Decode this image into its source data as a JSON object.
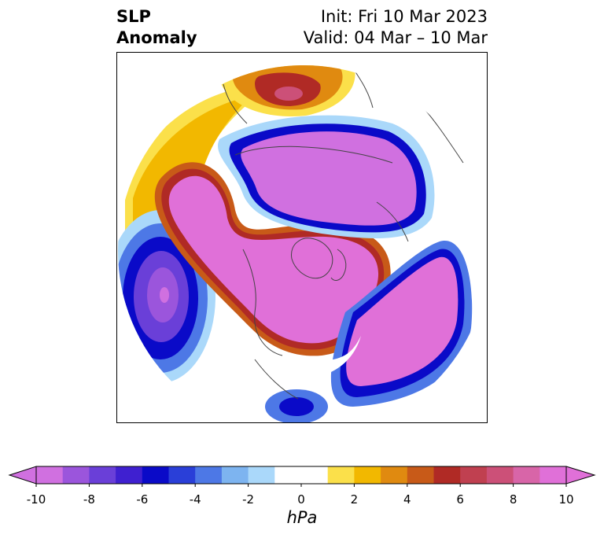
{
  "title": {
    "left_line1": "SLP",
    "left_line2": "Anomaly",
    "right_line1": "Init: Fri 10 Mar 2023",
    "right_line2": "Valid: 04 Mar – 10 Mar"
  },
  "map": {
    "projection": "polar stereographic (north pole centered, circular domain)",
    "coastline_color": "#444444",
    "features": [
      {
        "name": "north-america-negative-anomaly",
        "sign": "negative",
        "level": "-10 or lower"
      },
      {
        "name": "north-pacific-negative-anomaly",
        "sign": "negative",
        "level": "-10 or lower"
      },
      {
        "name": "north-atlantic-europe-positive-anomaly",
        "sign": "positive",
        "level": "10 or higher"
      },
      {
        "name": "arctic-positive-anomaly",
        "sign": "positive",
        "level": "10 or higher"
      },
      {
        "name": "eastern-siberia-positive-anomaly",
        "sign": "positive",
        "level": "10 or higher"
      },
      {
        "name": "southeast-us-negative-anomaly",
        "sign": "negative",
        "level": "-6"
      },
      {
        "name": "north-africa-negative-anomaly",
        "sign": "negative",
        "level": "-8"
      }
    ]
  },
  "colorbar": {
    "unit": "hPa",
    "extend": "both",
    "min_color": "#d070e0",
    "max_color": "#e070d8",
    "ticks": [
      "-10",
      "-8",
      "-6",
      "-4",
      "-2",
      "0",
      "2",
      "4",
      "6",
      "8",
      "10"
    ],
    "colors": [
      "#d070e0",
      "#9b55dc",
      "#6a3fd8",
      "#3f20d0",
      "#0a0ac8",
      "#2a3fd8",
      "#4d78e6",
      "#7db4f0",
      "#aad8fa",
      "#ffffff",
      "#ffffff",
      "#fbe04a",
      "#f2b800",
      "#e08a10",
      "#c85a18",
      "#b02a25",
      "#c04050",
      "#cc5078",
      "#d865a8",
      "#e070d8"
    ]
  }
}
